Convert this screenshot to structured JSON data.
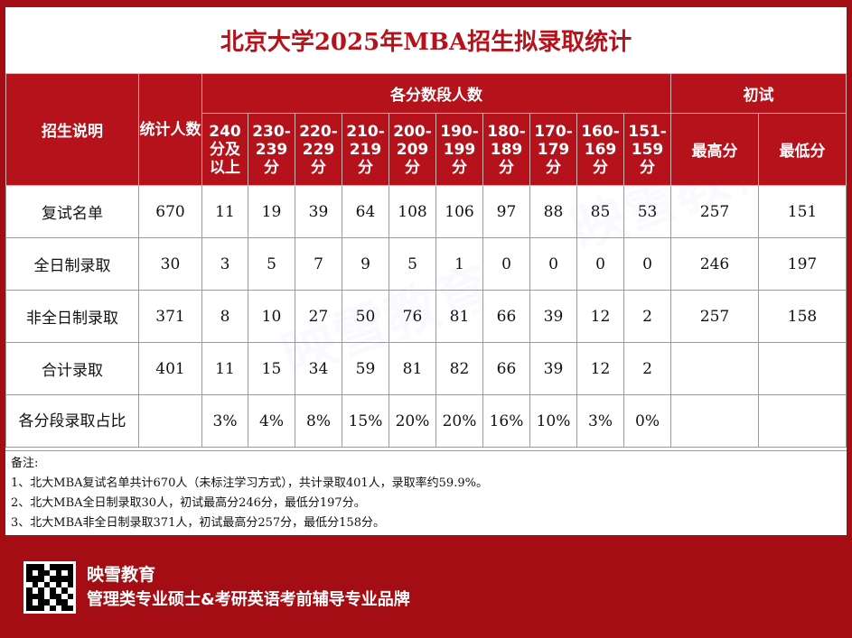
{
  "title": "北京大学2025年MBA招生拟录取统计",
  "header": {
    "desc_label": "招生说明",
    "count_label": "统计人数",
    "bands_label": "各分数段人数",
    "initial_label": "初试",
    "bands": [
      "240分及以上",
      "230-239分",
      "220-229分",
      "210-219分",
      "200-209分",
      "190-199分",
      "180-189分",
      "170-179分",
      "160-169分",
      "151-159分"
    ],
    "max_label": "最高分",
    "min_label": "最低分"
  },
  "rows": [
    {
      "label": "复试名单",
      "count": "670",
      "bands": [
        "11",
        "19",
        "39",
        "64",
        "108",
        "106",
        "97",
        "88",
        "85",
        "53"
      ],
      "max": "257",
      "min": "151"
    },
    {
      "label": "全日制录取",
      "count": "30",
      "bands": [
        "3",
        "5",
        "7",
        "9",
        "5",
        "1",
        "0",
        "0",
        "0",
        "0"
      ],
      "max": "246",
      "min": "197"
    },
    {
      "label": "非全日制录取",
      "count": "371",
      "bands": [
        "8",
        "10",
        "27",
        "50",
        "76",
        "81",
        "66",
        "39",
        "12",
        "2"
      ],
      "max": "257",
      "min": "158"
    },
    {
      "label": "合计录取",
      "count": "401",
      "bands": [
        "11",
        "15",
        "34",
        "59",
        "81",
        "82",
        "66",
        "39",
        "12",
        "2"
      ],
      "max": "",
      "min": ""
    },
    {
      "label": "各分段录取占比",
      "count": "",
      "bands": [
        "3%",
        "4%",
        "8%",
        "15%",
        "20%",
        "20%",
        "16%",
        "10%",
        "3%",
        "0%"
      ],
      "max": "",
      "min": ""
    }
  ],
  "notes": {
    "heading": "备注:",
    "lines": [
      "1、北大MBA复试名单共计670人（未标注学习方式），共计录取401人，录取率约59.9%。",
      "2、北大MBA全日制录取30人，初试最高分246分，最低分197分。",
      "3、北大MBA非全日制录取371人，初试最高分257分，最低分158分。"
    ]
  },
  "footer": {
    "brand_name": "映雪教育",
    "slogan": "管理类专业硕士&考研英语考前辅导专业品牌",
    "qr_icon": "qr-code-icon"
  },
  "colors": {
    "accent": "#b5121b",
    "background": "#a50d14"
  }
}
